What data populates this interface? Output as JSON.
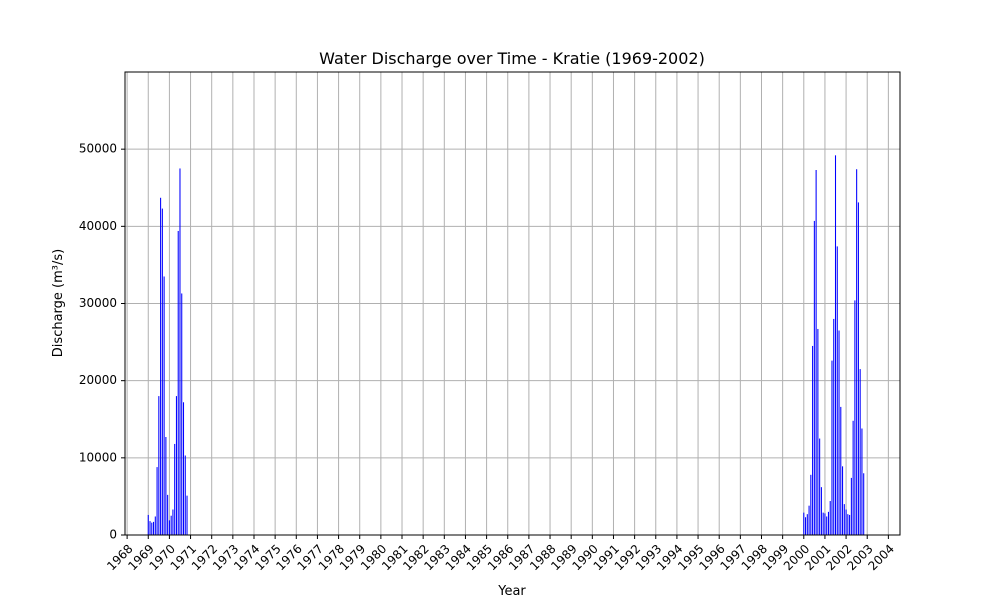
{
  "chart_data": {
    "type": "bar",
    "title": "Water Discharge over Time - Kratie (1969-2002)",
    "xlabel": "Year",
    "ylabel": "Discharge (m³/s)",
    "xlim": [
      1967.9,
      2004.55
    ],
    "ylim": [
      0,
      60000
    ],
    "grid": true,
    "bar_color": "#0000ff",
    "x_ticks": [
      "1968",
      "1969",
      "1970",
      "1971",
      "1972",
      "1973",
      "1974",
      "1975",
      "1976",
      "1977",
      "1978",
      "1979",
      "1980",
      "1981",
      "1982",
      "1983",
      "1984",
      "1985",
      "1986",
      "1987",
      "1988",
      "1989",
      "1990",
      "1991",
      "1992",
      "1993",
      "1994",
      "1995",
      "1996",
      "1997",
      "1998",
      "1999",
      "2000",
      "2001",
      "2002",
      "2003",
      "2004"
    ],
    "y_ticks": [
      0,
      10000,
      20000,
      30000,
      40000,
      50000
    ],
    "x": [
      "1969-01",
      "1969-02",
      "1969-03",
      "1969-04",
      "1969-05",
      "1969-06",
      "1969-07",
      "1969-08",
      "1969-09",
      "1969-10",
      "1969-11",
      "1969-12",
      "1970-01",
      "1970-02",
      "1970-03",
      "1970-04",
      "1970-05",
      "1970-06",
      "1970-07",
      "1970-08",
      "1970-09",
      "1970-10",
      "1970-11",
      "1970-12",
      "2000-01",
      "2000-02",
      "2000-03",
      "2000-04",
      "2000-05",
      "2000-06",
      "2000-07",
      "2000-08",
      "2000-09",
      "2000-10",
      "2000-11",
      "2000-12",
      "2001-01",
      "2001-02",
      "2001-03",
      "2001-04",
      "2001-05",
      "2001-06",
      "2001-07",
      "2001-08",
      "2001-09",
      "2001-10",
      "2001-11",
      "2001-12",
      "2002-01",
      "2002-02",
      "2002-03",
      "2002-04",
      "2002-05",
      "2002-06",
      "2002-07",
      "2002-08",
      "2002-09",
      "2002-10",
      "2002-11",
      "2002-12"
    ],
    "values": [
      2600,
      1800,
      1600,
      1700,
      2400,
      8800,
      18000,
      43700,
      42300,
      33500,
      12700,
      5200,
      1900,
      2500,
      3300,
      11800,
      18000,
      39400,
      47500,
      31300,
      17200,
      10300,
      5100,
      0,
      2900,
      2300,
      2700,
      3800,
      7800,
      24500,
      40700,
      47300,
      26700,
      12500,
      6200,
      2900,
      2800,
      2400,
      3000,
      4400,
      22600,
      28000,
      49200,
      37400,
      26500,
      16600,
      8900,
      4000,
      3300,
      2700,
      2600,
      7400,
      14800,
      30400,
      47400,
      43100,
      21500,
      13800,
      8000,
      0
    ]
  }
}
